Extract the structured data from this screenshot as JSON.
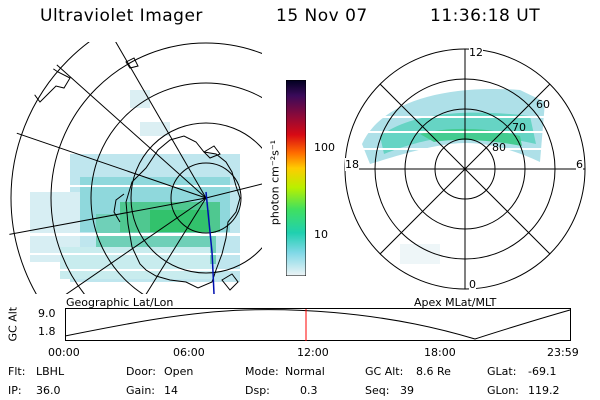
{
  "header": {
    "instrument": "Ultraviolet Imager",
    "date": "15 Nov 07",
    "time": "11:36:18 UT"
  },
  "left_map": {
    "caption": "Geographic Lat/Lon"
  },
  "right_map": {
    "caption": "Apex MLat/MLT",
    "mlt_labels": [
      "12",
      "18",
      "6",
      "0"
    ],
    "mlat_labels": [
      "60",
      "70",
      "80"
    ]
  },
  "colorbar": {
    "unit_label": "photon cm⁻²s⁻¹",
    "ticks": [
      "100",
      "10"
    ],
    "colors_top_to_bottom": [
      "#000020",
      "#2a0a4a",
      "#5a0a5a",
      "#8a0a3a",
      "#c80a14",
      "#ff3a00",
      "#ff8a00",
      "#ffd200",
      "#d8ff00",
      "#8af020",
      "#30e060",
      "#20d0b0",
      "#30c8d8",
      "#9ad8e8",
      "#e0ecf0"
    ]
  },
  "altitude_plot": {
    "axis_label": "GC Alt",
    "y_ticks": [
      "9.0",
      "1.8"
    ],
    "x_ticks": [
      "00:00",
      "06:00",
      "12:00",
      "18:00",
      "23:59"
    ],
    "current_time_marker_color": "#ff0000"
  },
  "status": {
    "row1": {
      "filter_label": "Flt:",
      "filter_value": "LBHL",
      "door_label": "Door:",
      "door_value": "Open",
      "mode_label": "Mode:",
      "mode_value": "Normal",
      "gcalt_label": "GC Alt:",
      "gcalt_value": "8.6 Re",
      "glat_label": "GLat:",
      "glat_value": "-69.1"
    },
    "row2": {
      "ip_label": "IP:",
      "ip_value": "36.0",
      "gain_label": "Gain:",
      "gain_value": "14",
      "dsp_label": "Dsp:",
      "dsp_value": "0.3",
      "seq_label": "Seq:",
      "seq_value": "39",
      "glon_label": "GLon:",
      "glon_value": "119.2"
    }
  }
}
